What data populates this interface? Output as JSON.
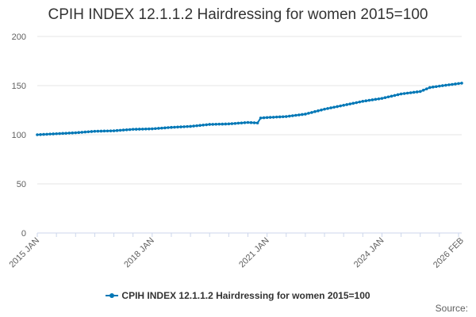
{
  "chart_data": {
    "type": "line",
    "title": "CPIH INDEX 12.1.1.2 Hairdressing for women 2015=100",
    "xlabel": "",
    "ylabel": "",
    "ylim": [
      0,
      200
    ],
    "yticks": [
      "0",
      "50",
      "100",
      "150",
      "200"
    ],
    "xtick_labels": [
      "2015 JAN",
      "2018 JAN",
      "2021 JAN",
      "2024 JAN",
      "2026 FEB"
    ],
    "x_range": [
      "2015-01",
      "2026-02"
    ],
    "grid": true,
    "legend_position": "bottom",
    "series": [
      {
        "name": "CPIH INDEX 12.1.1.2 Hairdressing for women 2015=100",
        "color": "#0077b6",
        "points": [
          [
            "2015-01",
            100.0
          ],
          [
            "2015-07",
            101.0
          ],
          [
            "2016-01",
            102.0
          ],
          [
            "2016-07",
            103.5
          ],
          [
            "2017-01",
            104.0
          ],
          [
            "2017-07",
            105.5
          ],
          [
            "2018-01",
            106.0
          ],
          [
            "2018-07",
            107.5
          ],
          [
            "2019-01",
            108.5
          ],
          [
            "2019-07",
            110.5
          ],
          [
            "2020-01",
            111.0
          ],
          [
            "2020-07",
            112.5
          ],
          [
            "2020-10",
            112.0
          ],
          [
            "2020-11",
            117.0
          ],
          [
            "2021-01",
            117.5
          ],
          [
            "2021-07",
            118.5
          ],
          [
            "2022-01",
            121.0
          ],
          [
            "2022-07",
            126.0
          ],
          [
            "2023-01",
            130.0
          ],
          [
            "2023-07",
            134.0
          ],
          [
            "2024-01",
            137.0
          ],
          [
            "2024-07",
            141.5
          ],
          [
            "2025-01",
            144.0
          ],
          [
            "2025-04",
            148.0
          ],
          [
            "2025-07",
            149.5
          ],
          [
            "2026-02",
            152.5
          ]
        ]
      }
    ]
  },
  "source_label": "Source:"
}
